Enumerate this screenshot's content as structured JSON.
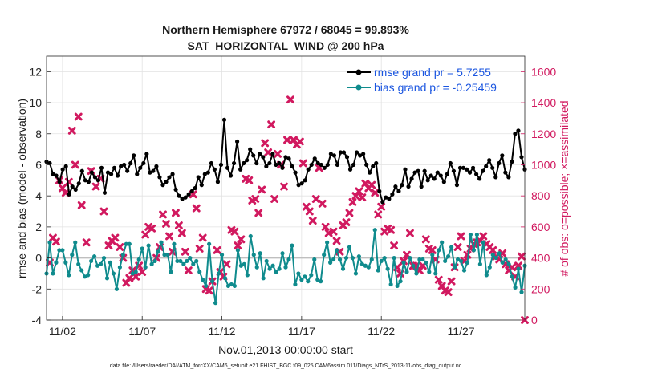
{
  "chart_data": {
    "type": "line",
    "title_lines": [
      "Northern Hemisphere 67972 / 68045 = 99.893%",
      "SAT_HORIZONTAL_WIND @ 200 hPa"
    ],
    "xlabel": "Nov.01,2013 00:00:00 start",
    "ylabel_left": "rmse and bias (model - observation)",
    "ylabel_right": "# of obs: o=possible; ×=assimilated",
    "footnote": "data file: /Users/raeder/DAI/ATM_forcXX/CAM6_setup/f.e21.FHIST_BGC.f09_025.CAM6assim.011/Diags_NTrS_2013-11/obs_diag_output.nc",
    "x_ticks": [
      {
        "day": 2,
        "label": "11/02"
      },
      {
        "day": 7,
        "label": "11/07"
      },
      {
        "day": 12,
        "label": "11/12"
      },
      {
        "day": 17,
        "label": "11/17"
      },
      {
        "day": 22,
        "label": "11/22"
      },
      {
        "day": 27,
        "label": "11/27"
      }
    ],
    "xlim": [
      1,
      31
    ],
    "y_left": {
      "ylim": [
        -4,
        13
      ],
      "ticks": [
        -4,
        -2,
        0,
        2,
        4,
        6,
        8,
        10,
        12
      ]
    },
    "y_right": {
      "ylim": [
        0,
        1700
      ],
      "ticks": [
        0,
        200,
        400,
        600,
        800,
        1000,
        1200,
        1400,
        1600
      ]
    },
    "grid": true,
    "legend_position": "top-right",
    "colors": {
      "rmse": "#000000",
      "bias": "#0f8b8d",
      "obs": "#d1195f",
      "zero_line": "#bfbfbf"
    },
    "series": [
      {
        "key": "rmse",
        "name": "rmse grand pr = 5.7255",
        "values": [
          6.2,
          6.1,
          5.4,
          5.3,
          4.9,
          5.7,
          5.9,
          4.1,
          4.6,
          4.4,
          4.8,
          5.6,
          5.0,
          4.9,
          5.5,
          5.2,
          5.0,
          5.8,
          4.2,
          5.5,
          5.4,
          5.8,
          5.3,
          5.9,
          6.0,
          5.6,
          6.1,
          6.6,
          5.4,
          5.8,
          6.1,
          6.7,
          5.5,
          5.6,
          5.9,
          5.2,
          4.7,
          4.9,
          5.2,
          5.4,
          4.4,
          4.0,
          3.8,
          3.9,
          4.1,
          4.3,
          4.5,
          5.2,
          4.7,
          5.4,
          5.5,
          6.1,
          5.7,
          4.9,
          6.0,
          8.9,
          5.8,
          5.3,
          6.1,
          7.5,
          5.7,
          6.1,
          6.3,
          7.0,
          6.6,
          6.1,
          6.7,
          6.5,
          5.9,
          6.1,
          6.7,
          6.0,
          6.1,
          5.8,
          6.5,
          6.4,
          5.9,
          5.5,
          4.7,
          4.8,
          5.0,
          5.7,
          6.0,
          6.4,
          6.1,
          6.0,
          5.8,
          6.0,
          6.7,
          6.6,
          6.0,
          6.8,
          6.8,
          6.5,
          5.7,
          6.0,
          6.8,
          6.6,
          6.7,
          6.0,
          5.5,
          5.9,
          6.1,
          4.3,
          3.6,
          3.9,
          3.8,
          4.1,
          4.6,
          4.3,
          4.7,
          5.7,
          4.6,
          5.1,
          5.5,
          5.6,
          4.6,
          5.6,
          5.0,
          5.3,
          5.1,
          5.5,
          5.3,
          4.9,
          5.4,
          6.1,
          5.6,
          4.7,
          5.8,
          5.8,
          5.7,
          5.5,
          5.8,
          5.4,
          5.1,
          5.6,
          5.9,
          6.3,
          5.8,
          5.2,
          6.1,
          6.6,
          5.5,
          5.2,
          6.2,
          8.0,
          8.2,
          6.5,
          5.7
        ],
        "marker": "circle"
      },
      {
        "key": "bias",
        "name": "bias grand pr = -0.25459",
        "values": [
          -1.0,
          1.0,
          -1.0,
          -0.3,
          0.5,
          0.5,
          -0.3,
          -1.1,
          0.2,
          1.0,
          -0.4,
          -0.8,
          -1.2,
          -1.1,
          -0.2,
          0.1,
          -0.5,
          -0.4,
          0.0,
          -1.3,
          -0.3,
          -1.0,
          -2.0,
          -0.6,
          0.2,
          0.9,
          0.9,
          -1.0,
          -0.9,
          -0.1,
          0.6,
          -0.6,
          0.8,
          -0.4,
          -0.2,
          0.4,
          1.0,
          0.2,
          0.2,
          -0.9,
          0.9,
          -0.2,
          -0.2,
          -0.4,
          -0.2,
          0.0,
          -0.4,
          -0.2,
          -0.9,
          -1.4,
          -1.8,
          0.9,
          -1.5,
          -2.9,
          -1.0,
          0.2,
          -1.3,
          -1.8,
          -1.7,
          -1.8,
          0.5,
          -0.5,
          -0.4,
          -1.1,
          1.4,
          0.2,
          -0.6,
          0.3,
          -1.3,
          -0.2,
          -0.7,
          -0.5,
          -0.9,
          -0.7,
          0.3,
          -0.6,
          -0.1,
          0.8,
          -1.7,
          -1.0,
          -1.4,
          -1.2,
          -1.5,
          -1.1,
          -0.1,
          -1.4,
          -1.5,
          0.2,
          1.0,
          -0.3,
          -0.1,
          0.5,
          -0.1,
          -0.7,
          0.0,
          0.7,
          0.0,
          -1.0,
          0.1,
          -0.4,
          -0.5,
          -0.6,
          -0.1,
          1.8,
          -0.8,
          -0.2,
          0.0,
          -0.7,
          -1.7,
          0.0,
          -1.8,
          -1.5,
          -0.3,
          -0.9,
          0.0,
          -0.5,
          -1.0,
          -0.1,
          -0.1,
          -0.3,
          -0.9,
          0.2,
          -1.0,
          0.5,
          1.0,
          -0.2,
          0.1,
          0.7,
          -0.6,
          -0.1,
          -0.2,
          -0.8,
          -0.3,
          1.5,
          0.5,
          1.5,
          -0.4,
          1.0,
          -1.1,
          -0.6,
          0.2,
          0.0,
          0.3,
          -0.3,
          -0.1,
          -0.4,
          -1.2,
          -1.9,
          -0.7,
          -2.2,
          -0.5
        ],
        "marker": "circle"
      },
      {
        "key": "obs",
        "name": "# of obs assimilated",
        "points": [
          [
            1.2,
            370
          ],
          [
            1.4,
            530
          ],
          [
            1.6,
            505
          ],
          [
            1.8,
            900
          ],
          [
            2.0,
            850
          ],
          [
            2.2,
            820
          ],
          [
            2.4,
            890
          ],
          [
            2.6,
            1220
          ],
          [
            2.8,
            1000
          ],
          [
            3.0,
            1310
          ],
          [
            3.2,
            740
          ],
          [
            3.5,
            500
          ],
          [
            3.8,
            960
          ],
          [
            4.1,
            860
          ],
          [
            4.4,
            910
          ],
          [
            4.6,
            700
          ],
          [
            4.9,
            480
          ],
          [
            5.1,
            510
          ],
          [
            5.3,
            530
          ],
          [
            5.6,
            470
          ],
          [
            5.8,
            400
          ],
          [
            6.0,
            240
          ],
          [
            6.2,
            270
          ],
          [
            6.4,
            320
          ],
          [
            6.6,
            280
          ],
          [
            6.8,
            350
          ],
          [
            7.0,
            310
          ],
          [
            7.2,
            550
          ],
          [
            7.4,
            600
          ],
          [
            7.6,
            590
          ],
          [
            7.9,
            400
          ],
          [
            8.1,
            470
          ],
          [
            8.3,
            680
          ],
          [
            8.5,
            620
          ],
          [
            8.7,
            540
          ],
          [
            8.9,
            440
          ],
          [
            9.1,
            690
          ],
          [
            9.3,
            610
          ],
          [
            9.5,
            560
          ],
          [
            9.7,
            440
          ],
          [
            9.9,
            320
          ],
          [
            10.2,
            810
          ],
          [
            10.4,
            720
          ],
          [
            10.6,
            460
          ],
          [
            10.8,
            530
          ],
          [
            11.0,
            200
          ],
          [
            11.2,
            190
          ],
          [
            11.4,
            250
          ],
          [
            11.7,
            450
          ],
          [
            11.9,
            310
          ],
          [
            12.1,
            280
          ],
          [
            12.3,
            360
          ],
          [
            12.6,
            580
          ],
          [
            12.8,
            570
          ],
          [
            13.0,
            480
          ],
          [
            13.2,
            520
          ],
          [
            13.5,
            910
          ],
          [
            13.7,
            900
          ],
          [
            13.9,
            770
          ],
          [
            14.1,
            780
          ],
          [
            14.3,
            690
          ],
          [
            14.5,
            840
          ],
          [
            14.7,
            1140
          ],
          [
            14.9,
            1080
          ],
          [
            15.1,
            1260
          ],
          [
            15.3,
            780
          ],
          [
            15.5,
            1070
          ],
          [
            15.7,
            1000
          ],
          [
            15.9,
            860
          ],
          [
            16.1,
            1160
          ],
          [
            16.3,
            1420
          ],
          [
            16.5,
            1160
          ],
          [
            16.7,
            1130
          ],
          [
            16.9,
            1150
          ],
          [
            17.1,
            1010
          ],
          [
            17.3,
            730
          ],
          [
            17.5,
            700
          ],
          [
            17.7,
            640
          ],
          [
            17.9,
            780
          ],
          [
            18.1,
            980
          ],
          [
            18.3,
            750
          ],
          [
            18.5,
            600
          ],
          [
            18.7,
            560
          ],
          [
            19.0,
            570
          ],
          [
            19.2,
            510
          ],
          [
            19.4,
            440
          ],
          [
            19.6,
            610
          ],
          [
            19.8,
            630
          ],
          [
            20.0,
            690
          ],
          [
            20.2,
            760
          ],
          [
            20.4,
            800
          ],
          [
            20.6,
            830
          ],
          [
            20.8,
            790
          ],
          [
            21.0,
            880
          ],
          [
            21.2,
            850
          ],
          [
            21.4,
            870
          ],
          [
            21.6,
            820
          ],
          [
            21.8,
            680
          ],
          [
            22.0,
            730
          ],
          [
            22.2,
            570
          ],
          [
            22.4,
            590
          ],
          [
            22.6,
            580
          ],
          [
            22.8,
            480
          ],
          [
            23.0,
            340
          ],
          [
            23.2,
            300
          ],
          [
            23.4,
            380
          ],
          [
            23.6,
            420
          ],
          [
            23.8,
            560
          ],
          [
            24.0,
            350
          ],
          [
            24.2,
            350
          ],
          [
            24.4,
            320
          ],
          [
            24.6,
            350
          ],
          [
            24.8,
            520
          ],
          [
            25.0,
            460
          ],
          [
            25.2,
            450
          ],
          [
            25.4,
            390
          ],
          [
            25.6,
            260
          ],
          [
            25.8,
            220
          ],
          [
            26.0,
            190
          ],
          [
            26.2,
            180
          ],
          [
            26.4,
            250
          ],
          [
            26.6,
            340
          ],
          [
            26.8,
            470
          ],
          [
            27.0,
            540
          ],
          [
            27.2,
            380
          ],
          [
            27.4,
            420
          ],
          [
            27.6,
            460
          ],
          [
            27.8,
            490
          ],
          [
            28.0,
            500
          ],
          [
            28.2,
            510
          ],
          [
            28.4,
            540
          ],
          [
            28.6,
            490
          ],
          [
            28.8,
            470
          ],
          [
            29.0,
            450
          ],
          [
            29.2,
            410
          ],
          [
            29.4,
            390
          ],
          [
            29.6,
            430
          ],
          [
            29.8,
            360
          ],
          [
            30.0,
            320
          ],
          [
            30.2,
            340
          ],
          [
            30.4,
            280
          ],
          [
            30.6,
            350
          ],
          [
            30.8,
            410
          ],
          [
            31.0,
            0
          ]
        ],
        "marker": "x"
      }
    ]
  }
}
